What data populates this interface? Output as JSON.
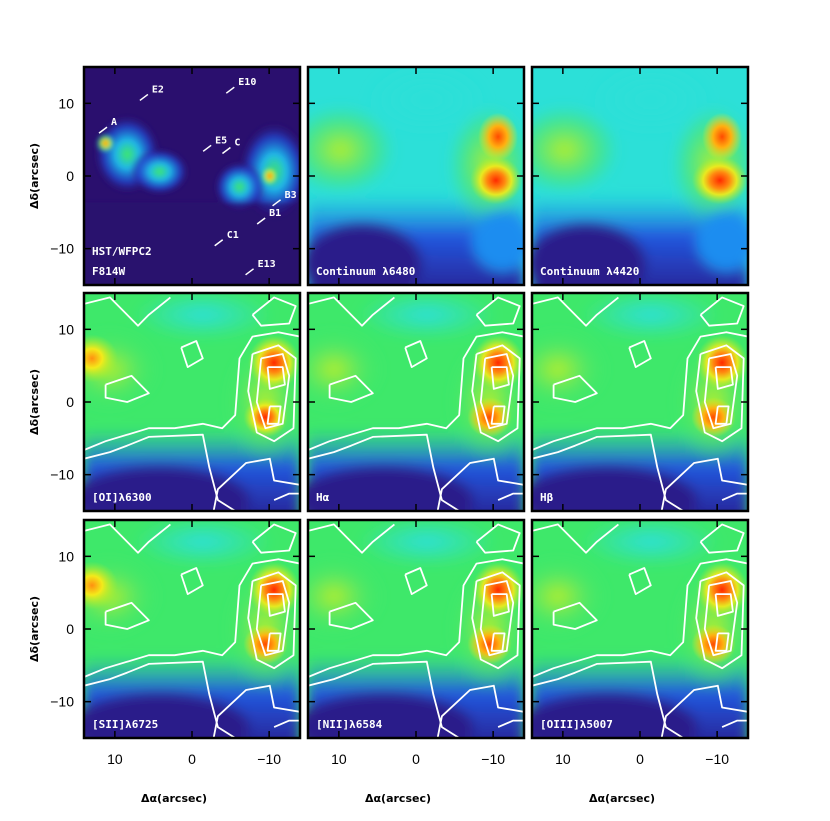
{
  "chart_data": {
    "type": "heatmap",
    "grid": "3x3",
    "x_axis": {
      "label": "Δα(arcsec)",
      "ticks": [
        10,
        0,
        -10
      ],
      "range": [
        14,
        -14
      ]
    },
    "y_axis": {
      "label": "Δδ(arcsec)",
      "ticks": [
        10,
        0,
        -10
      ],
      "range": [
        -15,
        15
      ]
    },
    "colormap": [
      "#2a0f6e",
      "#2233cc",
      "#1f8df0",
      "#2ce0d8",
      "#3ee86a",
      "#a6ee2c",
      "#f3ea1a",
      "#ff8a10",
      "#ff2a00"
    ],
    "contour_color": "#ffffff",
    "panels": [
      {
        "label": "HST/WFPC2\nF814W",
        "kind": "image",
        "sources": [
          {
            "name": "E2",
            "x": 5.2,
            "y": 11.5
          },
          {
            "name": "A",
            "x": 10.5,
            "y": 7.0
          },
          {
            "name": "E10",
            "x": -6.0,
            "y": 12.5
          },
          {
            "name": "E5",
            "x": -3.0,
            "y": 4.5
          },
          {
            "name": "C",
            "x": -5.5,
            "y": 4.2
          },
          {
            "name": "B3",
            "x": -12.0,
            "y": -3.0
          },
          {
            "name": "B1",
            "x": -10.0,
            "y": -5.5
          },
          {
            "name": "C1",
            "x": -4.5,
            "y": -8.5
          },
          {
            "name": "E13",
            "x": -8.5,
            "y": -12.5
          }
        ]
      },
      {
        "label": "Continuum λ6480",
        "kind": "continuum"
      },
      {
        "label": "Continuum λ4420",
        "kind": "continuum"
      },
      {
        "label": "[OI]λ6300",
        "kind": "line"
      },
      {
        "label": "Hα",
        "kind": "line"
      },
      {
        "label": "Hβ",
        "kind": "line"
      },
      {
        "label": "[SII]λ6725",
        "kind": "line"
      },
      {
        "label": "[NII]λ6584",
        "kind": "line"
      },
      {
        "label": "[OIII]λ5007",
        "kind": "line"
      }
    ]
  }
}
